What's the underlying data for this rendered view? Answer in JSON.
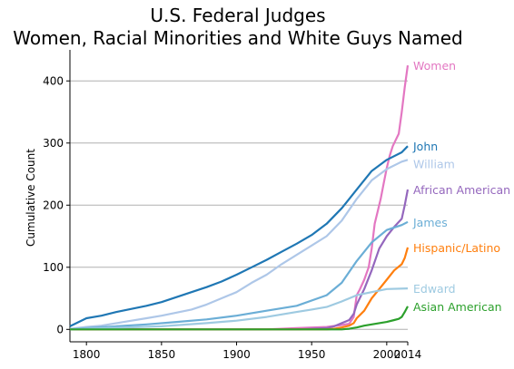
{
  "chart_data": {
    "type": "line",
    "title": "U.S. Federal Judges",
    "subtitle": "Women, Racial Minorities and White Guys Named",
    "xlabel": "",
    "ylabel": "Cumulative Count",
    "xlim": [
      1789,
      2014
    ],
    "ylim": [
      -20,
      450
    ],
    "xticks": [
      "1800",
      "1850",
      "1900",
      "1950",
      "2000",
      "2014"
    ],
    "yticks": [
      "0",
      "100",
      "200",
      "300",
      "400"
    ],
    "grid": "horizontal",
    "legend": "direct labels at line ends",
    "series": [
      {
        "name": "Women",
        "color": "#e377c2",
        "x": [
          1789,
          1920,
          1940,
          1960,
          1970,
          1975,
          1978,
          1980,
          1982,
          1985,
          1988,
          1990,
          1992,
          1994,
          1996,
          1998,
          2000,
          2002,
          2004,
          2006,
          2008,
          2010,
          2012,
          2014
        ],
        "y": [
          0,
          0,
          2,
          4,
          7,
          9,
          20,
          55,
          64,
          80,
          100,
          130,
          170,
          190,
          210,
          235,
          260,
          280,
          295,
          305,
          315,
          350,
          390,
          425
        ]
      },
      {
        "name": "John",
        "color": "#1f77b4",
        "x": [
          1789,
          1800,
          1810,
          1820,
          1830,
          1840,
          1850,
          1860,
          1870,
          1880,
          1890,
          1900,
          1910,
          1920,
          1930,
          1940,
          1950,
          1960,
          1970,
          1980,
          1990,
          2000,
          2010,
          2014
        ],
        "y": [
          5,
          18,
          22,
          28,
          33,
          38,
          44,
          52,
          60,
          68,
          77,
          88,
          100,
          112,
          125,
          138,
          152,
          170,
          195,
          225,
          255,
          273,
          285,
          295
        ]
      },
      {
        "name": "William",
        "color": "#aec7e8",
        "x": [
          1789,
          1800,
          1810,
          1820,
          1830,
          1840,
          1850,
          1860,
          1870,
          1880,
          1890,
          1900,
          1910,
          1920,
          1930,
          1940,
          1950,
          1960,
          1970,
          1980,
          1990,
          2000,
          2010,
          2014
        ],
        "y": [
          1,
          4,
          6,
          10,
          14,
          18,
          22,
          27,
          32,
          40,
          50,
          60,
          75,
          88,
          105,
          120,
          135,
          150,
          175,
          210,
          240,
          258,
          270,
          273
        ]
      },
      {
        "name": "African American",
        "color": "#9467bd",
        "x": [
          1789,
          1940,
          1960,
          1965,
          1970,
          1975,
          1978,
          1980,
          1985,
          1990,
          1995,
          2000,
          2005,
          2010,
          2012,
          2014
        ],
        "y": [
          0,
          0,
          2,
          5,
          10,
          15,
          25,
          40,
          65,
          95,
          130,
          150,
          165,
          178,
          200,
          225
        ]
      },
      {
        "name": "James",
        "color": "#6baed6",
        "x": [
          1789,
          1800,
          1820,
          1840,
          1860,
          1880,
          1900,
          1920,
          1940,
          1960,
          1970,
          1980,
          1990,
          2000,
          2010,
          2014
        ],
        "y": [
          0,
          2,
          5,
          8,
          12,
          16,
          22,
          30,
          38,
          55,
          75,
          110,
          140,
          160,
          168,
          173
        ]
      },
      {
        "name": "Hispanic/Latino",
        "color": "#ff7f0e",
        "x": [
          1789,
          1960,
          1965,
          1970,
          1975,
          1978,
          1980,
          1985,
          1990,
          1995,
          2000,
          2005,
          2010,
          2012,
          2014
        ],
        "y": [
          0,
          0,
          1,
          3,
          6,
          10,
          18,
          30,
          50,
          65,
          80,
          95,
          105,
          115,
          132
        ]
      },
      {
        "name": "Edward",
        "color": "#9ecae1",
        "x": [
          1789,
          1800,
          1850,
          1880,
          1900,
          1920,
          1940,
          1950,
          1960,
          1970,
          1980,
          1990,
          2000,
          2014
        ],
        "y": [
          0,
          1,
          5,
          10,
          14,
          20,
          28,
          32,
          36,
          45,
          55,
          60,
          65,
          66
        ]
      },
      {
        "name": "Asian American",
        "color": "#2ca02c",
        "x": [
          1789,
          1970,
          1975,
          1980,
          1985,
          1990,
          1995,
          2000,
          2005,
          2008,
          2010,
          2012,
          2014
        ],
        "y": [
          0,
          0,
          1,
          3,
          6,
          8,
          10,
          12,
          15,
          17,
          20,
          28,
          37
        ]
      }
    ]
  }
}
